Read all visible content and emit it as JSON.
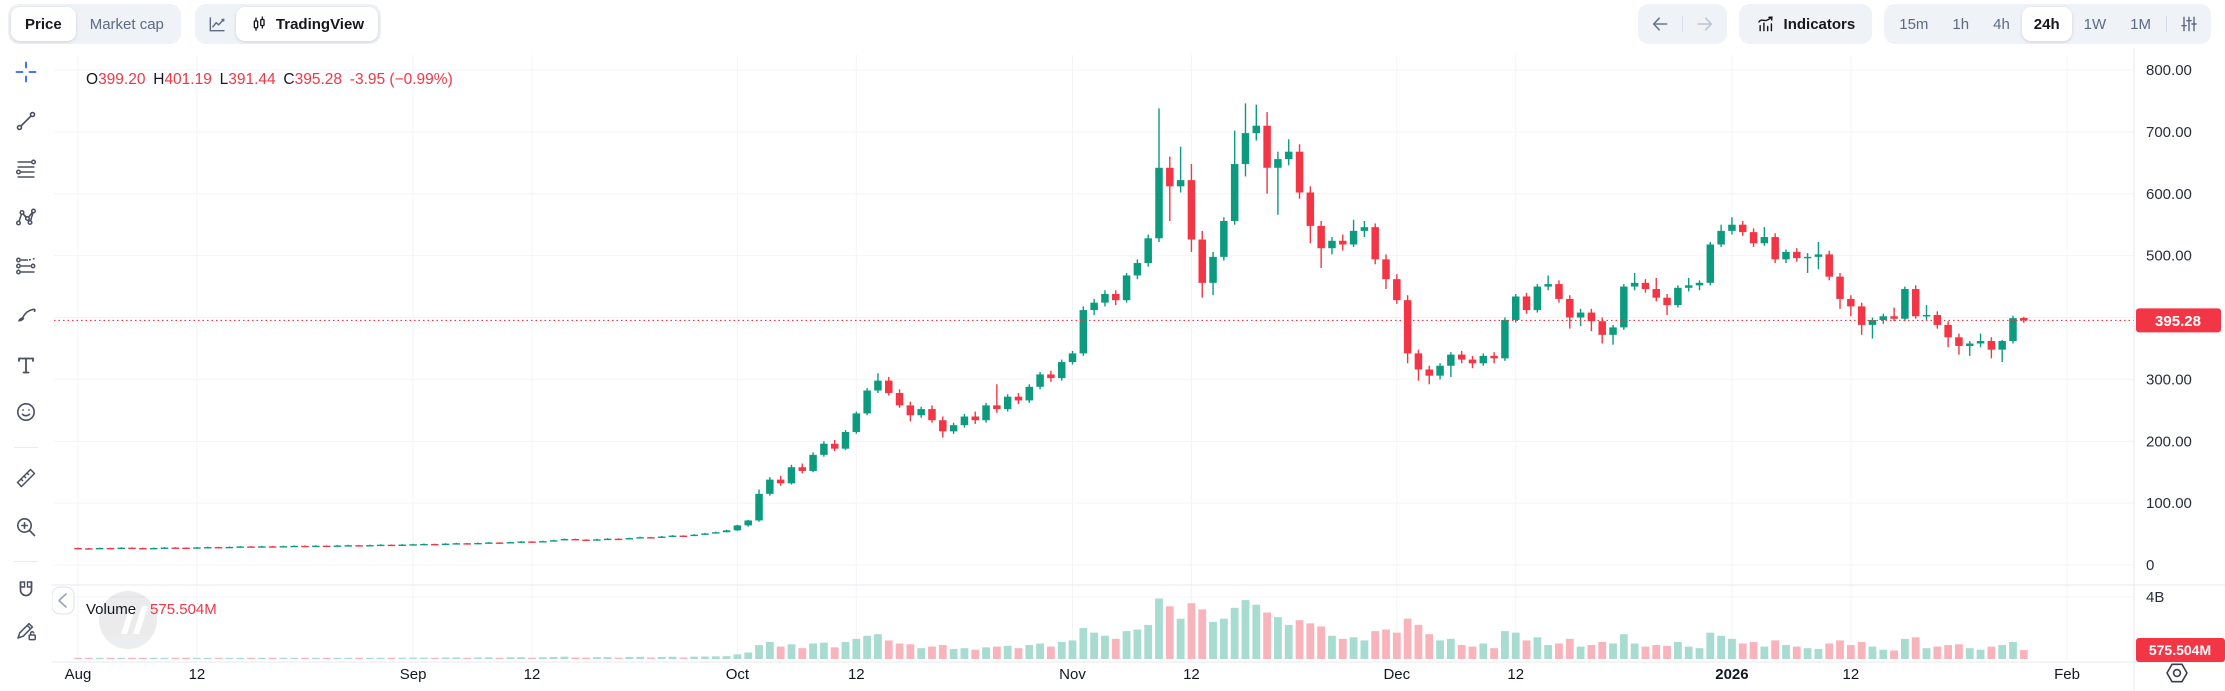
{
  "header": {
    "price_tab": "Price",
    "market_cap_tab": "Market cap",
    "tradingview_tab": "TradingView",
    "indicators_label": "Indicators",
    "timeframes": [
      "15m",
      "1h",
      "4h",
      "24h",
      "1W",
      "1M"
    ],
    "active_timeframe": "24h"
  },
  "toolbar": {
    "tools": [
      "crosshair",
      "trend-line",
      "fib-retracement",
      "xabcd-pattern",
      "projection",
      "brush",
      "text",
      "emoji",
      "ruler",
      "zoom-in",
      "magnet",
      "draw-lock"
    ]
  },
  "legend": {
    "o_label": "O",
    "o": "399.20",
    "h_label": "H",
    "h": "401.19",
    "l_label": "L",
    "l": "391.44",
    "c_label": "C",
    "c": "395.28",
    "change": "-3.95",
    "change_pct": "(−0.99%)"
  },
  "volume_pane": {
    "title": "Volume",
    "value": "575.504M"
  },
  "price_axis": {
    "labels": [
      {
        "text": "800.00",
        "price": 800
      },
      {
        "text": "700.00",
        "price": 700
      },
      {
        "text": "600.00",
        "price": 600
      },
      {
        "text": "500.00",
        "price": 500
      },
      {
        "text": "300.00",
        "price": 300
      },
      {
        "text": "200.00",
        "price": 200
      },
      {
        "text": "100.00",
        "price": 100
      },
      {
        "text": "0",
        "price": 0
      }
    ],
    "current_price_badge": "395.28",
    "volume_axis_top": "4B",
    "current_volume_badge": "575.504M"
  },
  "time_axis": {
    "labels": [
      {
        "text": "Aug",
        "day": 0,
        "bold": false
      },
      {
        "text": "12",
        "day": 11,
        "bold": false
      },
      {
        "text": "Sep",
        "day": 31,
        "bold": false
      },
      {
        "text": "12",
        "day": 42,
        "bold": false
      },
      {
        "text": "Oct",
        "day": 61,
        "bold": false
      },
      {
        "text": "12",
        "day": 72,
        "bold": false
      },
      {
        "text": "Nov",
        "day": 92,
        "bold": false
      },
      {
        "text": "12",
        "day": 103,
        "bold": false
      },
      {
        "text": "Dec",
        "day": 122,
        "bold": false
      },
      {
        "text": "12",
        "day": 133,
        "bold": false
      },
      {
        "text": "2026",
        "day": 153,
        "bold": true
      },
      {
        "text": "12",
        "day": 164,
        "bold": false
      },
      {
        "text": "Feb",
        "day": 184,
        "bold": false
      }
    ]
  },
  "colors": {
    "up": "#0d9b80",
    "down": "#f23645",
    "vol_up": "#a8dcd0",
    "vol_down": "#f8b4ba",
    "badge": "#f23645",
    "accent_blue": "#2962ff",
    "grid": "#f2f4f8",
    "separator": "#e6e9f0",
    "axis_text": "#2a2e39",
    "legend_text": "#131722",
    "legend_value": "#f23645"
  },
  "chart_data": {
    "type": "candlestick",
    "price_line": 395.28,
    "axis": {
      "price_min": 0,
      "price_max": 830,
      "volume_max_label": "4B",
      "volume_max_millions": 4000,
      "grid": "on"
    },
    "note": "daily OHLC estimated from chart; volume in millions",
    "candles": [
      [
        27.5,
        28.2,
        26.4,
        27.0,
        55
      ],
      [
        27.0,
        27.6,
        25.8,
        26.5,
        48
      ],
      [
        26.5,
        28.1,
        26.2,
        27.5,
        52
      ],
      [
        27.5,
        28.0,
        26.3,
        27.0,
        45
      ],
      [
        27.0,
        28.6,
        26.8,
        28.0,
        60
      ],
      [
        28.0,
        28.5,
        27.0,
        27.5,
        42
      ],
      [
        27.5,
        28.0,
        26.2,
        26.8,
        50
      ],
      [
        26.8,
        28.2,
        26.5,
        27.5,
        47
      ],
      [
        27.5,
        28.9,
        27.2,
        28.2,
        58
      ],
      [
        28.2,
        28.8,
        27.4,
        28.0,
        44
      ],
      [
        28.0,
        28.5,
        27.0,
        27.6,
        41
      ],
      [
        27.6,
        29.2,
        27.3,
        28.5,
        62
      ],
      [
        28.5,
        29.7,
        28.2,
        29.0,
        65
      ],
      [
        29.0,
        29.5,
        27.9,
        28.4,
        49
      ],
      [
        28.4,
        29.9,
        28.1,
        29.2,
        57
      ],
      [
        29.2,
        30.7,
        28.9,
        30.0,
        70
      ],
      [
        30.0,
        30.5,
        28.9,
        29.5,
        46
      ],
      [
        29.5,
        30.9,
        29.2,
        30.2,
        61
      ],
      [
        30.2,
        30.7,
        29.2,
        29.8,
        43
      ],
      [
        29.8,
        31.2,
        29.5,
        30.5,
        66
      ],
      [
        30.5,
        31.7,
        30.2,
        31.0,
        72
      ],
      [
        31.0,
        31.5,
        29.8,
        30.4,
        51
      ],
      [
        30.4,
        31.9,
        30.1,
        31.2,
        68
      ],
      [
        31.2,
        31.7,
        30.2,
        30.8,
        47
      ],
      [
        30.8,
        32.2,
        30.5,
        31.5,
        73
      ],
      [
        31.5,
        32.7,
        31.2,
        32.0,
        76
      ],
      [
        32.0,
        32.5,
        30.8,
        31.4,
        52
      ],
      [
        31.4,
        32.9,
        31.1,
        32.2,
        69
      ],
      [
        32.2,
        33.5,
        31.9,
        32.8,
        78
      ],
      [
        32.8,
        33.3,
        31.9,
        32.4,
        54
      ],
      [
        32.4,
        33.7,
        32.1,
        33.0,
        80
      ],
      [
        33.0,
        34.2,
        32.7,
        33.5,
        85
      ],
      [
        33.5,
        34.7,
        33.2,
        34.0,
        88
      ],
      [
        34.0,
        34.5,
        33.1,
        33.6,
        62
      ],
      [
        33.6,
        35.2,
        33.3,
        34.5,
        90
      ],
      [
        34.5,
        35.9,
        34.2,
        35.2,
        95
      ],
      [
        35.2,
        35.7,
        34.3,
        34.8,
        66
      ],
      [
        34.8,
        36.3,
        34.5,
        35.6,
        98
      ],
      [
        35.6,
        37.1,
        35.3,
        36.4,
        105
      ],
      [
        36.4,
        36.9,
        35.4,
        36.0,
        72
      ],
      [
        36.0,
        37.7,
        35.7,
        37.0,
        110
      ],
      [
        37.0,
        38.7,
        36.7,
        38.0,
        118
      ],
      [
        38.0,
        38.5,
        36.9,
        37.5,
        80
      ],
      [
        37.5,
        39.3,
        37.2,
        38.6,
        112
      ],
      [
        38.6,
        40.8,
        38.3,
        40.0,
        130
      ],
      [
        40.0,
        42.8,
        39.7,
        42.0,
        150
      ],
      [
        42.0,
        42.5,
        40.4,
        41.0,
        95
      ],
      [
        41.0,
        41.6,
        39.3,
        40.0,
        88
      ],
      [
        40.0,
        42.3,
        39.7,
        41.5,
        120
      ],
      [
        41.5,
        43.3,
        41.2,
        42.5,
        125
      ],
      [
        42.5,
        43.0,
        41.3,
        42.0,
        82
      ],
      [
        42.0,
        44.3,
        41.7,
        43.5,
        128
      ],
      [
        43.5,
        45.8,
        43.2,
        45.0,
        140
      ],
      [
        45.0,
        45.5,
        43.8,
        44.5,
        90
      ],
      [
        44.5,
        46.9,
        44.2,
        46.0,
        135
      ],
      [
        46.0,
        48.3,
        45.7,
        47.5,
        145
      ],
      [
        47.5,
        48.0,
        46.2,
        47.0,
        92
      ],
      [
        47.0,
        49.9,
        46.7,
        49.0,
        150
      ],
      [
        49.0,
        51.9,
        48.7,
        51.0,
        160
      ],
      [
        51.0,
        53.9,
        50.7,
        53.0,
        170
      ],
      [
        53.0,
        56.9,
        52.7,
        56.0,
        185
      ],
      [
        56,
        65,
        55,
        64,
        300
      ],
      [
        64,
        73,
        62,
        72,
        420
      ],
      [
        72,
        122,
        70,
        115,
        900
      ],
      [
        115,
        142,
        112,
        138,
        1100
      ],
      [
        138,
        144,
        128,
        132,
        800
      ],
      [
        132,
        162,
        130,
        158,
        950
      ],
      [
        158,
        164,
        148,
        152,
        700
      ],
      [
        152,
        182,
        150,
        178,
        1000
      ],
      [
        178,
        200,
        175,
        196,
        1050
      ],
      [
        196,
        202,
        184,
        188,
        750
      ],
      [
        188,
        218,
        186,
        215,
        1100
      ],
      [
        215,
        248,
        212,
        245,
        1300
      ],
      [
        245,
        286,
        242,
        282,
        1500
      ],
      [
        282,
        310,
        278,
        298,
        1600
      ],
      [
        298,
        304,
        274,
        278,
        1200
      ],
      [
        278,
        284,
        254,
        258,
        1000
      ],
      [
        258,
        264,
        232,
        242,
        950
      ],
      [
        242,
        256,
        238,
        252,
        700
      ],
      [
        252,
        258,
        230,
        234,
        800
      ],
      [
        234,
        240,
        206,
        216,
        900
      ],
      [
        216,
        230,
        212,
        226,
        650
      ],
      [
        226,
        244,
        222,
        240,
        700
      ],
      [
        240,
        248,
        228,
        234,
        600
      ],
      [
        234,
        262,
        230,
        258,
        750
      ],
      [
        258,
        292,
        246,
        252,
        800
      ],
      [
        252,
        276,
        248,
        272,
        850
      ],
      [
        272,
        278,
        260,
        266,
        700
      ],
      [
        266,
        292,
        262,
        288,
        900
      ],
      [
        288,
        312,
        284,
        308,
        1000
      ],
      [
        308,
        314,
        296,
        302,
        800
      ],
      [
        302,
        332,
        298,
        328,
        1100
      ],
      [
        328,
        346,
        324,
        342,
        1200
      ],
      [
        342,
        418,
        338,
        412,
        2000
      ],
      [
        412,
        430,
        404,
        424,
        1700
      ],
      [
        424,
        444,
        418,
        438,
        1500
      ],
      [
        438,
        444,
        420,
        428,
        1300
      ],
      [
        428,
        472,
        424,
        468,
        1800
      ],
      [
        468,
        494,
        462,
        488,
        1900
      ],
      [
        488,
        534,
        482,
        528,
        2200
      ],
      [
        528,
        738,
        522,
        642,
        3900
      ],
      [
        642,
        660,
        556,
        612,
        3400
      ],
      [
        612,
        676,
        602,
        622,
        2600
      ],
      [
        622,
        648,
        506,
        526,
        3600
      ],
      [
        526,
        540,
        432,
        456,
        3200
      ],
      [
        456,
        506,
        436,
        498,
        2400
      ],
      [
        498,
        562,
        492,
        556,
        2600
      ],
      [
        556,
        702,
        550,
        648,
        3300
      ],
      [
        648,
        746,
        628,
        698,
        3800
      ],
      [
        698,
        744,
        686,
        710,
        3500
      ],
      [
        710,
        732,
        600,
        642,
        3000
      ],
      [
        642,
        668,
        566,
        656,
        2700
      ],
      [
        656,
        688,
        646,
        668,
        2200
      ],
      [
        668,
        680,
        592,
        602,
        2500
      ],
      [
        602,
        612,
        520,
        548,
        2300
      ],
      [
        548,
        556,
        480,
        512,
        2100
      ],
      [
        512,
        530,
        502,
        524,
        1500
      ],
      [
        524,
        534,
        508,
        518,
        1300
      ],
      [
        518,
        558,
        514,
        540,
        1400
      ],
      [
        540,
        556,
        530,
        546,
        1200
      ],
      [
        546,
        552,
        486,
        494,
        1800
      ],
      [
        494,
        502,
        446,
        462,
        1900
      ],
      [
        462,
        470,
        422,
        428,
        1700
      ],
      [
        428,
        436,
        326,
        342,
        2600
      ],
      [
        342,
        348,
        298,
        316,
        2200
      ],
      [
        316,
        322,
        292,
        306,
        1600
      ],
      [
        306,
        326,
        300,
        322,
        1200
      ],
      [
        322,
        344,
        304,
        340,
        1300
      ],
      [
        340,
        346,
        326,
        332,
        900
      ],
      [
        332,
        338,
        318,
        326,
        800
      ],
      [
        326,
        342,
        322,
        338,
        1000
      ],
      [
        338,
        344,
        326,
        334,
        700
      ],
      [
        334,
        400,
        330,
        396,
        1800
      ],
      [
        396,
        438,
        392,
        434,
        1700
      ],
      [
        434,
        440,
        406,
        412,
        1200
      ],
      [
        412,
        454,
        408,
        450,
        1400
      ],
      [
        450,
        468,
        444,
        454,
        900
      ],
      [
        454,
        460,
        424,
        430,
        1000
      ],
      [
        430,
        436,
        382,
        400,
        1300
      ],
      [
        400,
        414,
        386,
        408,
        800
      ],
      [
        408,
        414,
        378,
        394,
        900
      ],
      [
        394,
        400,
        358,
        372,
        1100
      ],
      [
        372,
        388,
        356,
        384,
        1000
      ],
      [
        384,
        454,
        380,
        450,
        1600
      ],
      [
        450,
        472,
        444,
        456,
        1000
      ],
      [
        456,
        462,
        440,
        446,
        800
      ],
      [
        446,
        464,
        426,
        432,
        900
      ],
      [
        432,
        438,
        404,
        420,
        850
      ],
      [
        420,
        452,
        416,
        448,
        1100
      ],
      [
        448,
        464,
        442,
        452,
        800
      ],
      [
        452,
        460,
        444,
        456,
        700
      ],
      [
        456,
        522,
        452,
        518,
        1700
      ],
      [
        518,
        550,
        514,
        540,
        1500
      ],
      [
        540,
        562,
        534,
        550,
        1300
      ],
      [
        550,
        556,
        532,
        538,
        1000
      ],
      [
        538,
        544,
        514,
        520,
        1100
      ],
      [
        520,
        546,
        516,
        530,
        800
      ],
      [
        530,
        536,
        488,
        494,
        1200
      ],
      [
        494,
        510,
        488,
        506,
        900
      ],
      [
        506,
        512,
        490,
        496,
        800
      ],
      [
        496,
        504,
        472,
        498,
        700
      ],
      [
        498,
        522,
        478,
        502,
        650
      ],
      [
        502,
        508,
        460,
        466,
        1000
      ],
      [
        466,
        472,
        414,
        430,
        1200
      ],
      [
        430,
        436,
        402,
        418,
        900
      ],
      [
        418,
        424,
        372,
        388,
        1100
      ],
      [
        388,
        400,
        366,
        396,
        800
      ],
      [
        396,
        406,
        390,
        402,
        600
      ],
      [
        402,
        416,
        394,
        398,
        550
      ],
      [
        398,
        450,
        394,
        446,
        1300
      ],
      [
        446,
        452,
        398,
        402,
        1400
      ],
      [
        402,
        420,
        396,
        404,
        700
      ],
      [
        404,
        410,
        382,
        388,
        800
      ],
      [
        388,
        394,
        352,
        368,
        900
      ],
      [
        368,
        374,
        340,
        354,
        950
      ],
      [
        354,
        362,
        338,
        358,
        700
      ],
      [
        358,
        374,
        352,
        362,
        600
      ],
      [
        362,
        368,
        334,
        348,
        800
      ],
      [
        348,
        364,
        328,
        362,
        900
      ],
      [
        362,
        403,
        358,
        399,
        1100
      ],
      [
        399.2,
        401.19,
        391.44,
        395.28,
        575.504
      ]
    ]
  }
}
